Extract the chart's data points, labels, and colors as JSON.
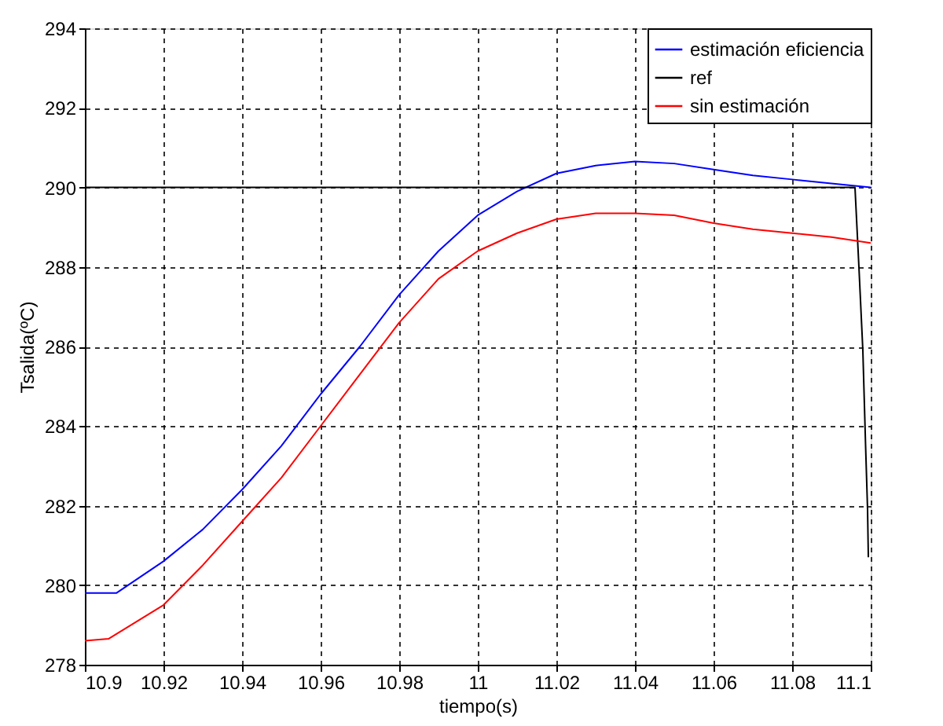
{
  "chart_data": {
    "type": "line",
    "xlabel": "tiempo(s)",
    "ylabel": "Tsalida(ºC)",
    "xlim": [
      10.9,
      11.1
    ],
    "xticks": [
      10.9,
      10.92,
      10.94,
      10.96,
      10.98,
      11,
      11.02,
      11.04,
      11.06,
      11.08,
      11.1
    ],
    "ylim": [
      278,
      294
    ],
    "yticks": [
      278,
      280,
      282,
      284,
      286,
      288,
      290,
      292,
      294
    ],
    "grid": true,
    "legend": "top right",
    "line_style": "solid",
    "marker": "none",
    "series": [
      {
        "name": "estimación eficiencia",
        "color": "#0000ff",
        "x": [
          10.9,
          10.908,
          10.92,
          10.93,
          10.94,
          10.95,
          10.96,
          10.97,
          10.98,
          10.99,
          11.0,
          11.01,
          11.02,
          11.03,
          11.04,
          11.05,
          11.06,
          11.07,
          11.08,
          11.09,
          11.1
        ],
        "values": [
          279.8,
          279.8,
          280.6,
          281.4,
          282.4,
          283.5,
          284.8,
          286.0,
          287.3,
          288.4,
          289.3,
          289.9,
          290.35,
          290.55,
          290.65,
          290.6,
          290.45,
          290.3,
          290.2,
          290.1,
          290.0
        ]
      },
      {
        "name": "ref",
        "color": "#000000",
        "x": [
          10.9,
          11.096,
          11.097,
          11.098,
          11.0987,
          11.0992,
          11.0994
        ],
        "values": [
          290,
          290,
          288.0,
          285.9,
          283.5,
          281.9,
          280.7
        ]
      },
      {
        "name": "sin estimación",
        "color": "#ff0000",
        "x": [
          10.9,
          10.906,
          10.92,
          10.93,
          10.94,
          10.95,
          10.96,
          10.97,
          10.98,
          10.99,
          11.0,
          11.01,
          11.02,
          11.03,
          11.04,
          11.05,
          11.06,
          11.07,
          11.08,
          11.09,
          11.1
        ],
        "values": [
          278.6,
          278.65,
          279.5,
          280.5,
          281.6,
          282.7,
          284.0,
          285.3,
          286.6,
          287.7,
          288.4,
          288.85,
          289.2,
          289.35,
          289.35,
          289.3,
          289.1,
          288.95,
          288.85,
          288.75,
          288.6
        ]
      }
    ]
  }
}
